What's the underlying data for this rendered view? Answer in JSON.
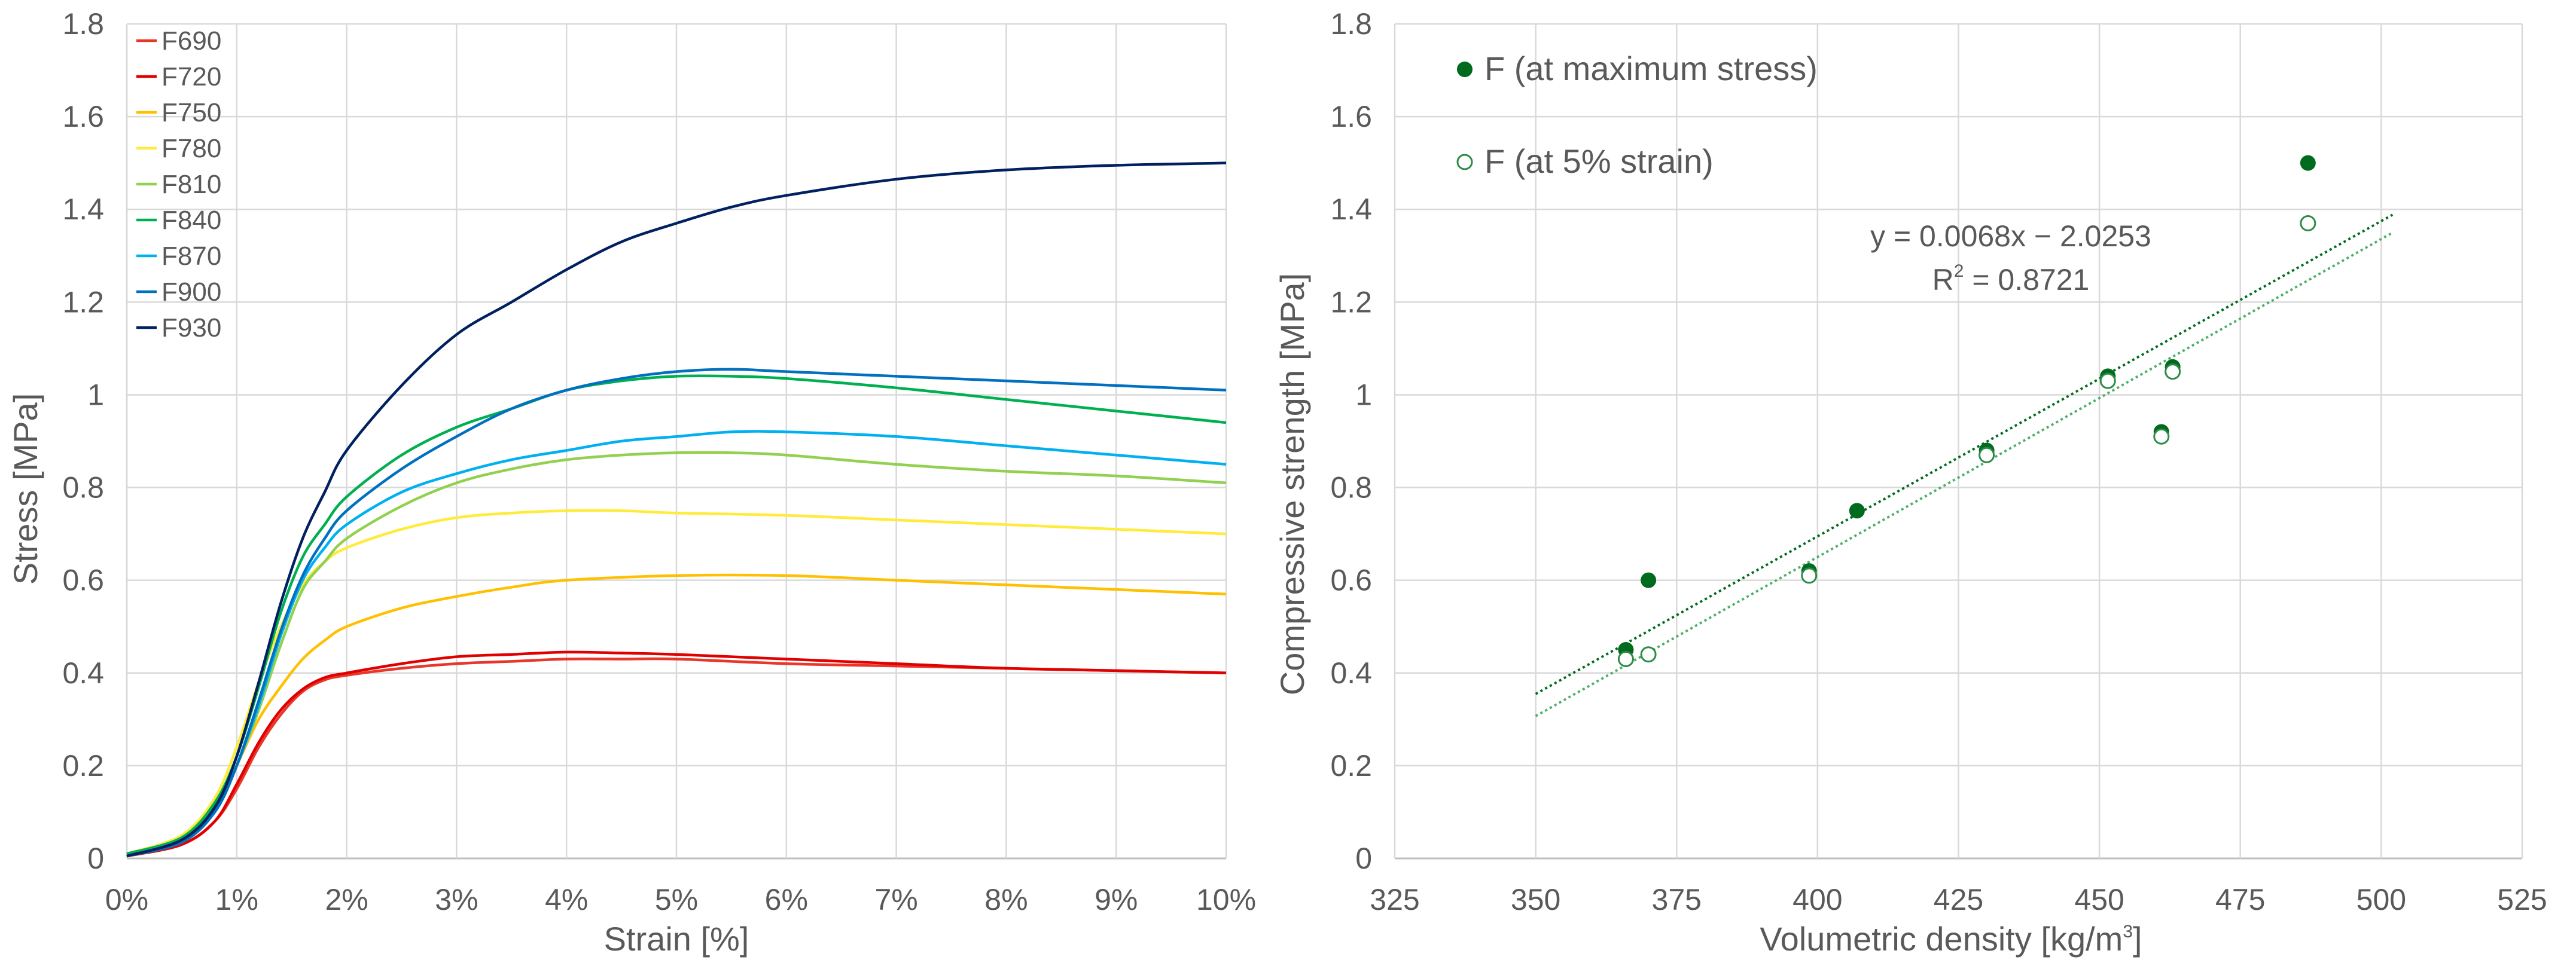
{
  "chart_data": [
    {
      "type": "line",
      "xlabel": "Strain [%]",
      "ylabel": "Stress [MPa]",
      "xlim": [
        0,
        10
      ],
      "ylim": [
        0,
        1.8
      ],
      "xticks": [
        0,
        1,
        2,
        3,
        4,
        5,
        6,
        7,
        8,
        9,
        10
      ],
      "xtick_labels": [
        "0%",
        "1%",
        "2%",
        "3%",
        "4%",
        "5%",
        "6%",
        "7%",
        "8%",
        "9%",
        "10%"
      ],
      "yticks": [
        0,
        0.2,
        0.4,
        0.6,
        0.8,
        1,
        1.2,
        1.4,
        1.6,
        1.8
      ],
      "ytick_labels": [
        "0",
        "0.2",
        "0.4",
        "0.6",
        "0.8",
        "1",
        "1.2",
        "1.4",
        "1.6",
        "1.8"
      ],
      "grid": true,
      "legend_position": "top-left",
      "series": [
        {
          "name": "F690",
          "color": "#e8372a",
          "x": [
            0,
            0.5,
            0.8,
            1,
            1.2,
            1.4,
            1.6,
            1.8,
            2,
            2.5,
            3,
            3.5,
            4,
            4.5,
            5,
            6,
            7,
            8,
            9,
            10
          ],
          "y": [
            0.005,
            0.03,
            0.08,
            0.15,
            0.24,
            0.31,
            0.36,
            0.385,
            0.395,
            0.41,
            0.42,
            0.425,
            0.43,
            0.43,
            0.43,
            0.42,
            0.415,
            0.41,
            0.405,
            0.4
          ]
        },
        {
          "name": "F720",
          "color": "#e00000",
          "x": [
            0,
            0.5,
            0.8,
            1,
            1.2,
            1.4,
            1.6,
            1.8,
            2,
            2.5,
            3,
            3.5,
            4,
            4.5,
            5,
            6,
            7,
            8,
            9,
            10
          ],
          "y": [
            0.005,
            0.03,
            0.08,
            0.16,
            0.25,
            0.32,
            0.365,
            0.39,
            0.4,
            0.42,
            0.435,
            0.44,
            0.445,
            0.443,
            0.44,
            0.43,
            0.42,
            0.41,
            0.405,
            0.4
          ]
        },
        {
          "name": "F750",
          "color": "#ffc000",
          "x": [
            0,
            0.5,
            0.8,
            1,
            1.2,
            1.4,
            1.6,
            1.8,
            2,
            2.5,
            3,
            3.5,
            4,
            5,
            6,
            7,
            8,
            9,
            10
          ],
          "y": [
            0.005,
            0.035,
            0.1,
            0.2,
            0.3,
            0.37,
            0.43,
            0.47,
            0.5,
            0.54,
            0.565,
            0.585,
            0.6,
            0.61,
            0.61,
            0.6,
            0.59,
            0.58,
            0.57
          ]
        },
        {
          "name": "F780",
          "color": "#ffeb3b",
          "x": [
            0,
            0.5,
            0.8,
            1,
            1.2,
            1.4,
            1.6,
            1.8,
            2,
            2.5,
            3,
            3.5,
            4,
            4.5,
            5,
            6,
            7,
            8,
            9,
            10
          ],
          "y": [
            0.01,
            0.05,
            0.13,
            0.24,
            0.38,
            0.5,
            0.59,
            0.64,
            0.67,
            0.71,
            0.735,
            0.745,
            0.75,
            0.75,
            0.745,
            0.74,
            0.73,
            0.72,
            0.71,
            0.7
          ]
        },
        {
          "name": "F810",
          "color": "#92d050",
          "x": [
            0,
            0.5,
            0.8,
            1,
            1.2,
            1.4,
            1.6,
            1.8,
            2,
            2.5,
            3,
            3.5,
            4,
            4.5,
            5,
            5.5,
            6,
            7,
            8,
            9,
            10
          ],
          "y": [
            0.01,
            0.04,
            0.1,
            0.2,
            0.32,
            0.46,
            0.58,
            0.64,
            0.69,
            0.76,
            0.81,
            0.84,
            0.86,
            0.87,
            0.875,
            0.875,
            0.87,
            0.85,
            0.835,
            0.825,
            0.81
          ]
        },
        {
          "name": "F840",
          "color": "#00b050",
          "x": [
            0,
            0.5,
            0.8,
            1,
            1.2,
            1.4,
            1.6,
            1.8,
            2,
            2.5,
            3,
            3.5,
            4,
            4.5,
            5,
            5.5,
            6,
            7,
            8,
            9,
            10
          ],
          "y": [
            0.01,
            0.045,
            0.12,
            0.22,
            0.37,
            0.53,
            0.65,
            0.72,
            0.78,
            0.87,
            0.93,
            0.97,
            1.01,
            1.03,
            1.04,
            1.04,
            1.035,
            1.015,
            0.99,
            0.965,
            0.94
          ]
        },
        {
          "name": "F870",
          "color": "#00b0f0",
          "x": [
            0,
            0.5,
            0.8,
            1,
            1.2,
            1.4,
            1.6,
            1.8,
            2,
            2.5,
            3,
            3.5,
            4,
            4.5,
            5,
            5.5,
            6,
            7,
            8,
            9,
            10
          ],
          "y": [
            0.005,
            0.04,
            0.1,
            0.2,
            0.33,
            0.48,
            0.6,
            0.67,
            0.72,
            0.79,
            0.83,
            0.86,
            0.88,
            0.9,
            0.91,
            0.92,
            0.92,
            0.91,
            0.89,
            0.87,
            0.85
          ]
        },
        {
          "name": "F900",
          "color": "#0070c0",
          "x": [
            0,
            0.5,
            0.8,
            1,
            1.2,
            1.4,
            1.6,
            1.8,
            2,
            2.5,
            3,
            3.5,
            4,
            4.5,
            5,
            5.5,
            6,
            7,
            8,
            9,
            10
          ],
          "y": [
            0.005,
            0.035,
            0.1,
            0.2,
            0.34,
            0.49,
            0.61,
            0.69,
            0.75,
            0.84,
            0.91,
            0.97,
            1.01,
            1.035,
            1.05,
            1.055,
            1.05,
            1.04,
            1.03,
            1.02,
            1.01
          ]
        },
        {
          "name": "F930",
          "color": "#002060",
          "x": [
            0,
            0.5,
            0.8,
            1,
            1.2,
            1.4,
            1.6,
            1.8,
            2,
            2.5,
            3,
            3.5,
            4,
            4.5,
            5,
            5.5,
            6,
            7,
            8,
            9,
            10
          ],
          "y": [
            0.005,
            0.04,
            0.11,
            0.22,
            0.38,
            0.55,
            0.69,
            0.79,
            0.88,
            1.02,
            1.13,
            1.2,
            1.27,
            1.33,
            1.37,
            1.405,
            1.43,
            1.465,
            1.485,
            1.495,
            1.5
          ]
        }
      ]
    },
    {
      "type": "scatter",
      "xlabel": "Volumetric density [kg/m",
      "xlabel_sup": "3",
      "xlabel_suffix": "]",
      "ylabel": "Compressive strength [MPa]",
      "xlim": [
        325,
        525
      ],
      "ylim": [
        0,
        1.8
      ],
      "xticks": [
        325,
        350,
        375,
        400,
        425,
        450,
        475,
        500,
        525
      ],
      "xtick_labels": [
        "325",
        "350",
        "375",
        "400",
        "425",
        "450",
        "475",
        "500",
        "525"
      ],
      "yticks": [
        0,
        0.2,
        0.4,
        0.6,
        0.8,
        1,
        1.2,
        1.4,
        1.6,
        1.8
      ],
      "ytick_labels": [
        "0",
        "0.2",
        "0.4",
        "0.6",
        "0.8",
        "1",
        "1.2",
        "1.4",
        "1.6",
        "1.8"
      ],
      "grid": true,
      "legend_position": "top-left",
      "series": [
        {
          "name": "F (at maximum stress)",
          "marker": "filled",
          "color": "#006b1f",
          "x": [
            366,
            370,
            398.5,
            407,
            430,
            451.5,
            461,
            463,
            487
          ],
          "y": [
            0.45,
            0.6,
            0.62,
            0.75,
            0.88,
            1.04,
            0.92,
            1.06,
            1.5
          ]
        },
        {
          "name": "F (at 5% strain)",
          "marker": "hollow",
          "color": "#2e8b45",
          "x": [
            366,
            370,
            398.5,
            430,
            451.5,
            461,
            463,
            487
          ],
          "y": [
            0.43,
            0.44,
            0.61,
            0.87,
            1.03,
            0.91,
            1.05,
            1.37
          ]
        }
      ],
      "trendlines": [
        {
          "of": "F (at maximum stress)",
          "slope": 0.0068,
          "intercept": -2.0253,
          "x_range": [
            350,
            502
          ],
          "color": "#006b1f"
        },
        {
          "of": "F (at 5% strain)",
          "slope": 0.00686,
          "intercept": -2.094,
          "x_range": [
            350,
            502
          ],
          "color": "#4caf6a"
        }
      ],
      "equation": "y = 0.0068x − 2.0253",
      "r2_prefix": "R",
      "r2_sup": "2",
      "r2_value": " = 0.8721"
    }
  ]
}
